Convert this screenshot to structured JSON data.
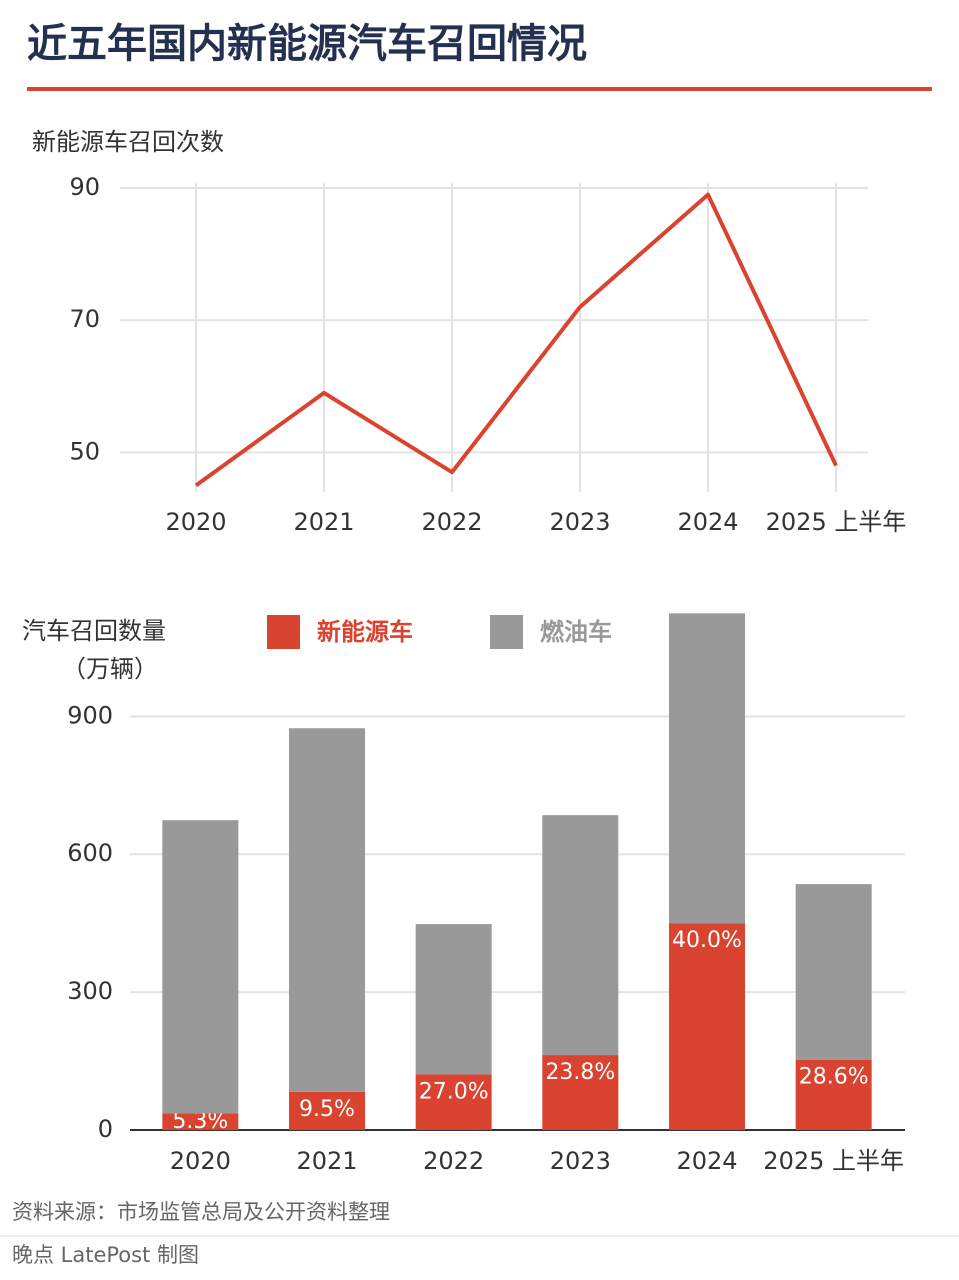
{
  "title": "近五年国内新能源汽车召回情况",
  "chart_data": [
    {
      "type": "line",
      "y_label": "新能源车召回次数",
      "categories": [
        "2020",
        "2021",
        "2022",
        "2023",
        "2024",
        "2025 上半年"
      ],
      "values": [
        45,
        59,
        47,
        72,
        89,
        48
      ],
      "color": "#d9432f",
      "ylim": [
        44,
        90
      ],
      "yticks": [
        50,
        70,
        90
      ],
      "grid": true
    },
    {
      "type": "bar",
      "stacked": true,
      "y_label": "汽车召回数量",
      "y_unit": "（万辆）",
      "categories": [
        "2020",
        "2021",
        "2022",
        "2023",
        "2024",
        "2025 上半年"
      ],
      "series": [
        {
          "name": "新能源车",
          "color": "#d9432f",
          "values": [
            36,
            83,
            121,
            163,
            450,
            153
          ],
          "share_labels": [
            "5.3%",
            "9.5%",
            "27.0%",
            "23.8%",
            "40.0%",
            "28.6%"
          ]
        },
        {
          "name": "燃油车",
          "color": "#999999",
          "values": [
            638,
            791,
            327,
            522,
            674,
            382
          ]
        }
      ],
      "ylim": [
        0,
        1140
      ],
      "yticks": [
        0,
        300,
        600,
        900
      ],
      "grid": true
    }
  ],
  "footer": {
    "source": "资料来源：市场监管总局及公开资料整理",
    "credit": "晚点 LatePost 制图"
  }
}
